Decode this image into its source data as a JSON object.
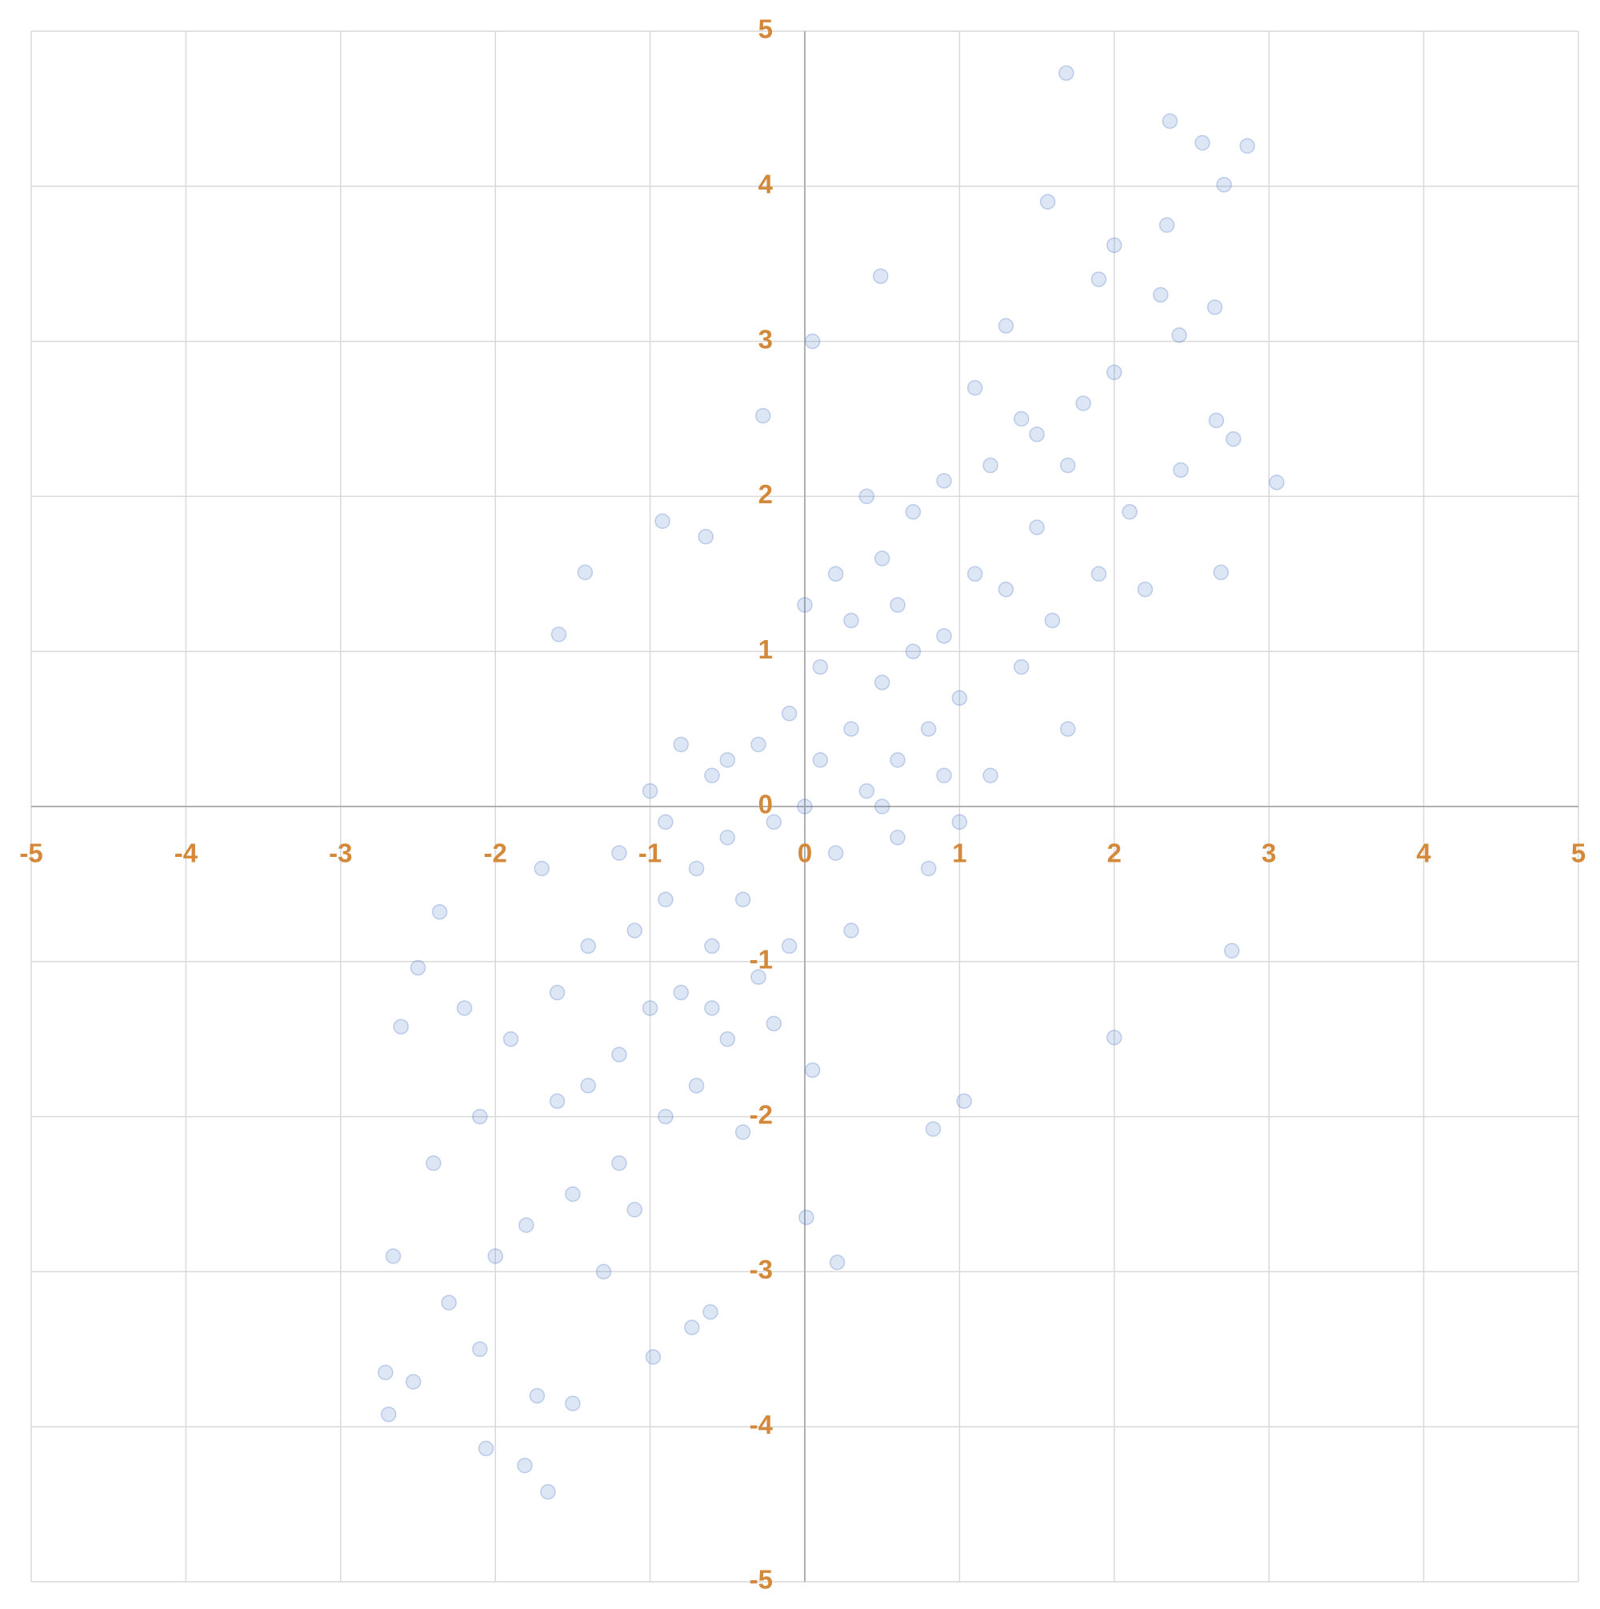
{
  "chart_data": {
    "type": "scatter",
    "x": [
      1.69,
      2.36,
      2.57,
      2.86,
      2.71,
      1.57,
      2.34,
      2.0,
      0.49,
      0.05,
      -0.27,
      3.05,
      2.69,
      2.76,
      2.0,
      1.03,
      0.83,
      0.01,
      0.21,
      -2.69,
      -2.71,
      -2.53,
      -1.66,
      -1.81,
      -2.06,
      -2.66,
      -2.61,
      -2.5,
      -2.36,
      -1.42,
      -1.59,
      -0.92,
      -0.64,
      -0.98,
      -1.5,
      -1.73,
      -0.61,
      -0.73,
      2.42,
      2.65,
      2.43,
      2.77,
      2.66,
      0,
      0.1,
      -0.2,
      0.3,
      -0.4,
      0.5,
      -0.6,
      0.7,
      -0.8,
      0.9,
      -1.0,
      1.1,
      -1.2,
      1.3,
      -1.4,
      0.2,
      -0.3,
      0.4,
      -0.5,
      0.6,
      -0.7,
      0.8,
      -0.9,
      1.0,
      -1.1,
      0.1,
      -0.1,
      0.3,
      -0.3,
      0.5,
      -0.5,
      0.7,
      -0.7,
      0.9,
      -0.9,
      1.2,
      -1.2,
      1.5,
      -1.5,
      1.8,
      -1.8,
      2.0,
      -2.0,
      1.4,
      -1.4,
      1.6,
      -1.6,
      1.9,
      -1.9,
      2.1,
      -2.1,
      0.6,
      -0.6,
      0.8,
      -0.8,
      1.0,
      -1.0,
      1.2,
      -1.2,
      0.2,
      -0.2,
      0.4,
      -0.4,
      1.1,
      -1.1,
      1.3,
      -1.3,
      0.3,
      -0.1,
      0,
      0.05,
      1.7,
      -1.7,
      2.2,
      -2.2,
      1.5,
      -1.6,
      0.9,
      -0.9,
      0.6,
      -0.6,
      2.3,
      -2.3,
      1.9,
      -2.4,
      -2.1,
      1.7,
      0.5,
      -0.5,
      1.4
    ],
    "series": [
      {
        "color": "#4472c4",
        "values": [
          4.73,
          4.42,
          4.28,
          4.26,
          4.01,
          3.9,
          3.75,
          3.62,
          3.42,
          3.0,
          2.52,
          2.09,
          1.51,
          -0.93,
          -1.49,
          -1.9,
          -2.08,
          -2.65,
          -2.94,
          -3.92,
          -3.65,
          -3.71,
          -4.42,
          -4.25,
          -4.14,
          -2.9,
          -1.42,
          -1.04,
          -0.68,
          1.51,
          1.11,
          1.84,
          1.74,
          -3.55,
          -3.85,
          -3.8,
          -3.26,
          -3.36,
          3.04,
          3.22,
          2.17,
          2.37,
          2.49,
          0,
          0.3,
          -0.1,
          0.5,
          -0.6,
          0.8,
          -0.9,
          1.0,
          -1.2,
          1.1,
          -1.3,
          1.5,
          -1.6,
          1.4,
          -1.8,
          -0.3,
          0.4,
          0.1,
          -0.2,
          0.3,
          -0.4,
          0.5,
          -0.6,
          0.7,
          -0.8,
          0.9,
          -0.9,
          1.2,
          -1.1,
          1.6,
          -1.5,
          1.9,
          -1.8,
          2.1,
          -2.0,
          2.2,
          -2.3,
          2.4,
          -2.5,
          2.6,
          -2.7,
          2.8,
          -2.9,
          0.9,
          -0.9,
          1.2,
          -1.2,
          1.5,
          -1.5,
          1.9,
          -2.0,
          -0.2,
          0.2,
          -0.4,
          0.4,
          -0.1,
          0.1,
          0.2,
          -0.3,
          1.5,
          -1.4,
          2.0,
          -2.1,
          2.7,
          -2.6,
          3.1,
          -3.0,
          -0.8,
          0.6,
          1.3,
          -1.7,
          0.5,
          -0.4,
          1.4,
          -1.3,
          1.8,
          -1.9,
          0.2,
          -0.1,
          1.3,
          -1.3,
          3.3,
          -3.2,
          3.4,
          -2.3,
          -3.5,
          2.2,
          0,
          0.3,
          2.5
        ]
      }
    ],
    "xlim": [
      -5,
      5
    ],
    "ylim": [
      -5,
      5
    ],
    "xticks": [
      -5,
      -4,
      -3,
      -2,
      -1,
      0,
      1,
      2,
      3,
      4,
      5
    ],
    "yticks": [
      -5,
      -4,
      -3,
      -2,
      -1,
      0,
      1,
      2,
      3,
      4,
      5
    ],
    "grid": true,
    "tick_label_color": "#d4883a"
  }
}
